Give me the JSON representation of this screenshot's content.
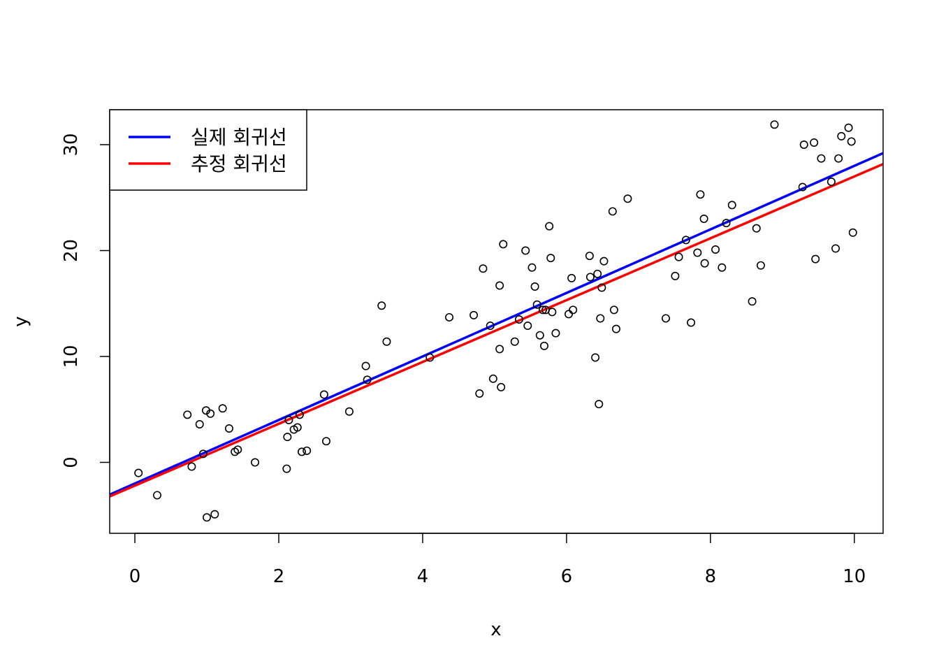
{
  "chart_data": {
    "type": "scatter",
    "title": "",
    "xlabel": "x",
    "ylabel": "y",
    "xlim": [
      -0.35,
      10.4
    ],
    "ylim": [
      -6.7,
      33.3
    ],
    "x_ticks": [
      0,
      2,
      4,
      6,
      8,
      10
    ],
    "y_ticks": [
      0,
      10,
      20,
      30
    ],
    "grid": false,
    "legend": {
      "placement": "top-left",
      "entries": [
        {
          "label": "실제 회귀선",
          "color": "#0000ff"
        },
        {
          "label": "추정 회귀선",
          "color": "#ff0000"
        }
      ]
    },
    "lines": [
      {
        "label": "실제 회귀선",
        "color": "#0000ff",
        "intercept": -2.0,
        "slope": 3.0
      },
      {
        "label": "추정 회귀선",
        "color": "#ff0000",
        "intercept": -2.2,
        "slope": 2.92
      }
    ],
    "points": [
      [
        0.05,
        -1.0
      ],
      [
        0.31,
        -3.1
      ],
      [
        0.73,
        4.5
      ],
      [
        0.79,
        -0.4
      ],
      [
        0.9,
        3.6
      ],
      [
        0.95,
        0.8
      ],
      [
        0.99,
        4.9
      ],
      [
        1.0,
        -5.2
      ],
      [
        1.05,
        4.6
      ],
      [
        1.11,
        -4.9
      ],
      [
        1.22,
        5.1
      ],
      [
        1.31,
        3.2
      ],
      [
        1.39,
        1.0
      ],
      [
        1.43,
        1.2
      ],
      [
        1.67,
        0.0
      ],
      [
        2.11,
        -0.6
      ],
      [
        2.12,
        2.4
      ],
      [
        2.14,
        4.0
      ],
      [
        2.21,
        3.1
      ],
      [
        2.26,
        3.3
      ],
      [
        2.29,
        4.5
      ],
      [
        2.32,
        1.0
      ],
      [
        2.39,
        1.1
      ],
      [
        2.63,
        6.4
      ],
      [
        2.66,
        2.0
      ],
      [
        2.98,
        4.8
      ],
      [
        3.21,
        9.1
      ],
      [
        3.23,
        7.8
      ],
      [
        3.43,
        14.8
      ],
      [
        3.5,
        11.4
      ],
      [
        4.1,
        9.9
      ],
      [
        4.37,
        13.7
      ],
      [
        4.71,
        13.9
      ],
      [
        4.79,
        6.5
      ],
      [
        4.84,
        18.3
      ],
      [
        4.94,
        12.9
      ],
      [
        4.98,
        7.9
      ],
      [
        5.07,
        10.7
      ],
      [
        5.07,
        16.7
      ],
      [
        5.09,
        7.1
      ],
      [
        5.12,
        20.6
      ],
      [
        5.28,
        11.4
      ],
      [
        5.34,
        13.5
      ],
      [
        5.43,
        20.0
      ],
      [
        5.46,
        12.9
      ],
      [
        5.52,
        18.4
      ],
      [
        5.56,
        16.6
      ],
      [
        5.59,
        14.9
      ],
      [
        5.63,
        12.0
      ],
      [
        5.67,
        14.4
      ],
      [
        5.69,
        11.0
      ],
      [
        5.71,
        14.4
      ],
      [
        5.76,
        22.3
      ],
      [
        5.78,
        19.3
      ],
      [
        5.8,
        14.2
      ],
      [
        5.85,
        12.2
      ],
      [
        6.03,
        14.0
      ],
      [
        6.07,
        17.4
      ],
      [
        6.09,
        14.4
      ],
      [
        6.32,
        19.5
      ],
      [
        6.33,
        17.5
      ],
      [
        6.4,
        9.9
      ],
      [
        6.43,
        17.8
      ],
      [
        6.45,
        5.5
      ],
      [
        6.47,
        13.6
      ],
      [
        6.49,
        16.5
      ],
      [
        6.52,
        19.0
      ],
      [
        6.64,
        23.7
      ],
      [
        6.66,
        14.4
      ],
      [
        6.69,
        12.6
      ],
      [
        6.85,
        24.9
      ],
      [
        7.38,
        13.6
      ],
      [
        7.51,
        17.6
      ],
      [
        7.56,
        19.4
      ],
      [
        7.66,
        21.0
      ],
      [
        7.73,
        13.2
      ],
      [
        7.82,
        19.8
      ],
      [
        7.86,
        25.3
      ],
      [
        7.91,
        23.0
      ],
      [
        7.92,
        18.8
      ],
      [
        8.07,
        20.1
      ],
      [
        8.16,
        18.4
      ],
      [
        8.22,
        22.6
      ],
      [
        8.3,
        24.3
      ],
      [
        8.58,
        15.2
      ],
      [
        8.64,
        22.1
      ],
      [
        8.7,
        18.6
      ],
      [
        8.89,
        31.9
      ],
      [
        9.28,
        26.0
      ],
      [
        9.3,
        30.0
      ],
      [
        9.44,
        30.2
      ],
      [
        9.46,
        19.2
      ],
      [
        9.54,
        28.7
      ],
      [
        9.68,
        26.5
      ],
      [
        9.74,
        20.2
      ],
      [
        9.78,
        28.7
      ],
      [
        9.82,
        30.8
      ],
      [
        9.92,
        31.6
      ],
      [
        9.96,
        30.3
      ],
      [
        9.98,
        21.7
      ]
    ]
  }
}
